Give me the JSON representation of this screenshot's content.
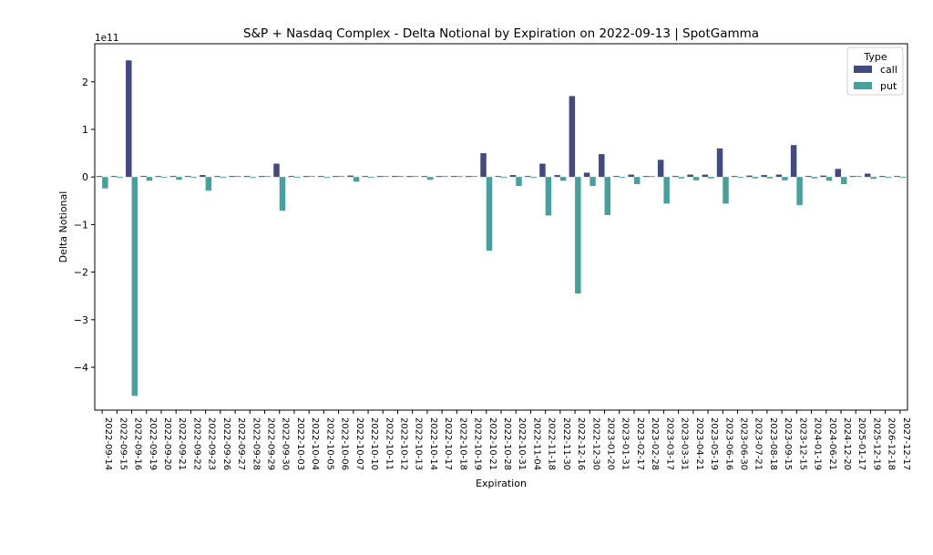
{
  "chart_data": {
    "type": "bar",
    "title": "S&P + Nasdaq Complex - Delta Notional by Expiration on 2022-09-13 | SpotGamma",
    "xlabel": "Expiration",
    "ylabel": "Delta Notional",
    "y_multiplier_label": "1e11",
    "ylim": [
      -4.9,
      2.8
    ],
    "yticks": [
      -4,
      -3,
      -2,
      -1,
      0,
      1,
      2
    ],
    "ytick_labels": [
      "−4",
      "−3",
      "−2",
      "−1",
      "0",
      "1",
      "2"
    ],
    "grid": false,
    "legend_position": "top-right",
    "legend_title": "Type",
    "colors": {
      "call": "#424a82",
      "put": "#46a19e"
    },
    "categories": [
      "2022-09-14",
      "2022-09-15",
      "2022-09-16",
      "2022-09-19",
      "2022-09-20",
      "2022-09-21",
      "2022-09-22",
      "2022-09-23",
      "2022-09-26",
      "2022-09-27",
      "2022-09-28",
      "2022-09-29",
      "2022-09-30",
      "2022-10-03",
      "2022-10-04",
      "2022-10-05",
      "2022-10-06",
      "2022-10-07",
      "2022-10-10",
      "2022-10-11",
      "2022-10-12",
      "2022-10-13",
      "2022-10-14",
      "2022-10-17",
      "2022-10-18",
      "2022-10-19",
      "2022-10-21",
      "2022-10-28",
      "2022-10-31",
      "2022-11-04",
      "2022-11-18",
      "2022-11-30",
      "2022-12-16",
      "2022-12-30",
      "2023-01-20",
      "2023-01-31",
      "2023-02-17",
      "2023-02-28",
      "2023-03-17",
      "2023-03-31",
      "2023-04-21",
      "2023-05-19",
      "2023-06-16",
      "2023-06-30",
      "2023-07-21",
      "2023-08-18",
      "2023-09-15",
      "2023-12-15",
      "2024-01-19",
      "2024-06-21",
      "2024-12-20",
      "2025-01-17",
      "2025-12-19",
      "2026-12-18",
      "2027-12-17"
    ],
    "series": [
      {
        "name": "call",
        "values": [
          0,
          0.01,
          2.45,
          0.02,
          0.01,
          0.02,
          0.01,
          0.04,
          0.01,
          0,
          0,
          0,
          0.28,
          0,
          0,
          0,
          0,
          0.03,
          0,
          0,
          0,
          0,
          0.01,
          0,
          0,
          0,
          0.5,
          0.01,
          0.04,
          0.01,
          0.28,
          0.04,
          1.7,
          0.09,
          0.48,
          0.02,
          0.05,
          0,
          0.36,
          0.02,
          0.05,
          0.05,
          0.6,
          0.01,
          0.03,
          0.04,
          0.05,
          0.67,
          0.02,
          0.03,
          0.17,
          0,
          0.07,
          0.02,
          0
        ]
      },
      {
        "name": "put",
        "values": [
          -0.24,
          -0.02,
          -4.6,
          -0.08,
          -0.01,
          -0.06,
          -0.02,
          -0.29,
          -0.02,
          0,
          -0.02,
          0,
          -0.71,
          -0.01,
          0,
          -0.01,
          0,
          -0.1,
          -0.01,
          0,
          0,
          0,
          -0.06,
          0,
          0,
          0,
          -1.55,
          -0.02,
          -0.19,
          -0.02,
          -0.81,
          -0.08,
          -2.45,
          -0.19,
          -0.8,
          -0.02,
          -0.15,
          0,
          -0.56,
          -0.03,
          -0.07,
          -0.03,
          -0.56,
          -0.01,
          -0.03,
          -0.03,
          -0.07,
          -0.59,
          -0.03,
          -0.08,
          -0.15,
          0,
          -0.04,
          -0.02,
          -0.02
        ]
      }
    ]
  }
}
